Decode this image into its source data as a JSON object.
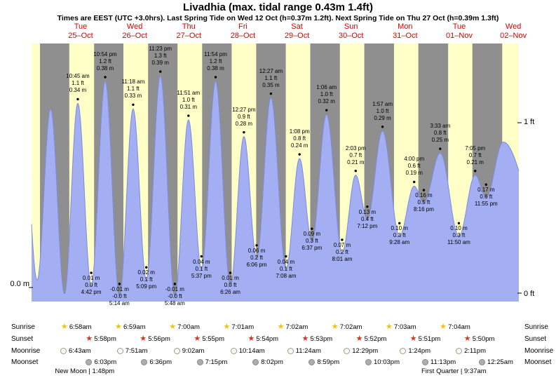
{
  "title": "Livadhia (max. tidal range 0.43m 1.4ft)",
  "subtitle": "Times are EEST (UTC +3.0hrs). Last Spring Tide on Wed 12 Oct (h=0.37m 1.2ft). Next Spring Tide on Thu 27 Oct (h=0.39m 1.3ft)",
  "axis": {
    "left_zero_m": "0.0 m",
    "right_one_ft": "1 ft",
    "right_zero_ft": "0 ft"
  },
  "days": [
    {
      "dow": "Tue",
      "date": "25–Oct"
    },
    {
      "dow": "Wed",
      "date": "26–Oct"
    },
    {
      "dow": "Thu",
      "date": "27–Oct"
    },
    {
      "dow": "Fri",
      "date": "28–Oct"
    },
    {
      "dow": "Sat",
      "date": "29–Oct"
    },
    {
      "dow": "Sun",
      "date": "30–Oct"
    },
    {
      "dow": "Mon",
      "date": "31–Oct"
    },
    {
      "dow": "Tue",
      "date": "01–Nov"
    },
    {
      "dow": "Wed",
      "date": "02–Nov"
    }
  ],
  "chart_data": {
    "type": "area",
    "title": "Tide height at Livadhia, Tue 25 Oct – Wed 02 Nov",
    "x_unit": "hours from Tue 25 Oct 00:00 EEST",
    "y_unit": "m",
    "ylim_m": [
      -0.05,
      0.45
    ],
    "colors": {
      "day_band": "#ffffc8",
      "night_band": "#8f8f8f",
      "tide_fill": "#a3aff2",
      "tide_stroke": "#7c8ce0",
      "day_label": "#dd0000",
      "marker": "#000000"
    },
    "extremes": [
      {
        "kind": "H",
        "time": "10:45 am",
        "ft": "1.1 ft",
        "m": "0.34 m",
        "t": 10.75,
        "h": 0.34
      },
      {
        "kind": "L",
        "m": "0.01 m",
        "ft": "0.0 ft",
        "time": "4:42 pm",
        "t": 16.7,
        "h": 0.01
      },
      {
        "kind": "H",
        "time": "10:54 pm",
        "ft": "1.2 ft",
        "m": "0.38 m",
        "t": 22.9,
        "h": 0.38
      },
      {
        "kind": "L",
        "m": "-0.01 m",
        "ft": "-0.0 ft",
        "time": "5:14 am",
        "t": 29.23,
        "h": -0.01
      },
      {
        "kind": "H",
        "time": "11:18 am",
        "ft": "1.1 ft",
        "m": "0.33 m",
        "t": 35.3,
        "h": 0.33
      },
      {
        "kind": "L",
        "m": "0.02 m",
        "ft": "0.1 ft",
        "time": "5:09 pm",
        "t": 41.15,
        "h": 0.02
      },
      {
        "kind": "H",
        "time": "11:23 pm",
        "ft": "1.3 ft",
        "m": "0.39 m",
        "t": 47.38,
        "h": 0.39
      },
      {
        "kind": "L",
        "m": "-0.01 m",
        "ft": "-0.0 ft",
        "time": "5:48 am",
        "t": 53.8,
        "h": -0.01
      },
      {
        "kind": "H",
        "time": "11:51 am",
        "ft": "1.0 ft",
        "m": "0.31 m",
        "t": 59.85,
        "h": 0.31
      },
      {
        "kind": "L",
        "m": "0.04 m",
        "ft": "0.1 ft",
        "time": "5:37 pm",
        "t": 65.62,
        "h": 0.04
      },
      {
        "kind": "H",
        "time": "11:54 pm",
        "ft": "1.2 ft",
        "m": "0.38 m",
        "t": 71.9,
        "h": 0.38
      },
      {
        "kind": "L",
        "m": "0.01 m",
        "ft": "0.0 ft",
        "time": "6:26 am",
        "t": 78.43,
        "h": 0.01
      },
      {
        "kind": "H",
        "time": "12:27 pm",
        "ft": "0.9 ft",
        "m": "0.28 m",
        "t": 84.45,
        "h": 0.28
      },
      {
        "kind": "L",
        "m": "0.06 m",
        "ft": "0.2 ft",
        "time": "6:06 pm",
        "t": 90.1,
        "h": 0.06
      },
      {
        "kind": "H",
        "time": "12:27 am",
        "ft": "1.1 ft",
        "m": "0.35 m",
        "t": 96.45,
        "h": 0.35
      },
      {
        "kind": "L",
        "m": "0.04 m",
        "ft": "0.1 ft",
        "time": "7:08 am",
        "t": 103.13,
        "h": 0.04
      },
      {
        "kind": "H",
        "time": "1:08 pm",
        "ft": "0.8 ft",
        "m": "0.24 m",
        "t": 109.13,
        "h": 0.24
      },
      {
        "kind": "L",
        "m": "0.09 m",
        "ft": "0.3 ft",
        "time": "6:37 pm",
        "t": 114.62,
        "h": 0.09
      },
      {
        "kind": "H",
        "time": "1:06 am",
        "ft": "1.0 ft",
        "m": "0.32 m",
        "t": 121.1,
        "h": 0.32
      },
      {
        "kind": "L",
        "m": "0.07 m",
        "ft": "0.2 ft",
        "time": "8:01 am",
        "t": 128.02,
        "h": 0.07
      },
      {
        "kind": "H",
        "time": "2:03 pm",
        "ft": "0.7 ft",
        "m": "0.21 m",
        "t": 134.05,
        "h": 0.21
      },
      {
        "kind": "L",
        "m": "0.13 m",
        "ft": "0.4 ft",
        "time": "7:12 pm",
        "t": 139.2,
        "h": 0.13
      },
      {
        "kind": "H",
        "time": "1:57 am",
        "ft": "1.0 ft",
        "m": "0.29 m",
        "t": 145.95,
        "h": 0.29
      },
      {
        "kind": "L",
        "m": "0.10 m",
        "ft": "0.3 ft",
        "time": "9:28 am",
        "t": 153.47,
        "h": 0.1
      },
      {
        "kind": "H",
        "time": "4:00 pm",
        "ft": "0.6 ft",
        "m": "0.19 m",
        "t": 160.0,
        "h": 0.19
      },
      {
        "kind": "L",
        "m": "0.16 m",
        "ft": "0.5 ft",
        "time": "8:16 pm",
        "t": 164.27,
        "h": 0.16
      },
      {
        "kind": "H",
        "time": "3:33 am",
        "ft": "0.8 ft",
        "m": "0.25 m",
        "t": 171.55,
        "h": 0.25
      },
      {
        "kind": "L",
        "m": "0.10 m",
        "ft": "0.3 ft",
        "time": "11:50 am",
        "t": 179.83,
        "h": 0.1
      },
      {
        "kind": "H",
        "time": "7:05 pm",
        "ft": "0.7 ft",
        "m": "0.21 m",
        "t": 187.08,
        "h": 0.21
      },
      {
        "kind": "L",
        "m": "0.17 m",
        "ft": "0.6 ft",
        "time": "11:55 pm",
        "t": 191.92,
        "h": 0.17
      }
    ],
    "edge_points_pre": [
      [
        -13.7,
        0.33
      ],
      [
        -7.3,
        0.02
      ],
      [
        -1.33,
        0.33
      ],
      [
        4.83,
        -0.005
      ]
    ],
    "edge_points_post": [
      [
        199.5,
        0.27
      ],
      [
        218.0,
        0.1
      ]
    ]
  },
  "sun_moon": {
    "rows": [
      {
        "name": "Sunrise",
        "icon": "sunrise-star",
        "entries": [
          {
            "time": "6:58am",
            "t": 6.97
          },
          {
            "time": "6:59am",
            "t": 30.98
          },
          {
            "time": "7:00am",
            "t": 55.0
          },
          {
            "time": "7:01am",
            "t": 79.02
          },
          {
            "time": "7:02am",
            "t": 103.03
          },
          {
            "time": "7:02am",
            "t": 127.03
          },
          {
            "time": "7:03am",
            "t": 151.05
          },
          {
            "time": "7:04am",
            "t": 175.07
          }
        ]
      },
      {
        "name": "Sunset",
        "icon": "sunset-star",
        "entries": [
          {
            "time": "5:58pm",
            "t": 17.97
          },
          {
            "time": "5:56pm",
            "t": 41.93
          },
          {
            "time": "5:55pm",
            "t": 65.92
          },
          {
            "time": "5:54pm",
            "t": 89.9
          },
          {
            "time": "5:53pm",
            "t": 113.88
          },
          {
            "time": "5:52pm",
            "t": 137.87
          },
          {
            "time": "5:51pm",
            "t": 161.85
          },
          {
            "time": "5:50pm",
            "t": 185.83
          }
        ]
      },
      {
        "name": "Moonrise",
        "icon": "moonrise-circle",
        "entries": [
          {
            "time": "6:43am",
            "t": 6.72
          },
          {
            "time": "7:51am",
            "t": 31.85
          },
          {
            "time": "9:02am",
            "t": 57.03
          },
          {
            "time": "10:14am",
            "t": 82.23
          },
          {
            "time": "11:24am",
            "t": 107.4
          },
          {
            "time": "12:29pm",
            "t": 132.48
          },
          {
            "time": "1:24pm",
            "t": 157.4
          },
          {
            "time": "2:11pm",
            "t": 182.18
          }
        ]
      },
      {
        "name": "Moonset",
        "icon": "moonset-circle",
        "entries": [
          {
            "time": "6:03pm",
            "t": 18.05
          },
          {
            "time": "6:36pm",
            "t": 42.6
          },
          {
            "time": "7:15pm",
            "t": 67.25
          },
          {
            "time": "8:02pm",
            "t": 92.03
          },
          {
            "time": "8:59pm",
            "t": 116.98
          },
          {
            "time": "10:03pm",
            "t": 142.05
          },
          {
            "time": "11:13pm",
            "t": 167.22
          },
          {
            "time": "12:25am",
            "t": 192.42
          }
        ]
      }
    ],
    "phases": [
      {
        "label": "New Moon | 1:48pm",
        "t": 13.8
      },
      {
        "label": "First Quarter | 9:37am",
        "t": 177.62
      }
    ]
  }
}
